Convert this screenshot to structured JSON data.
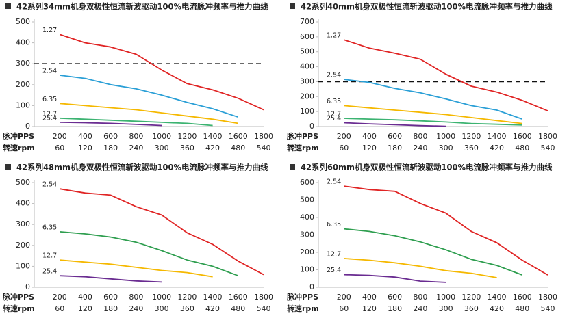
{
  "chart_data": [
    {
      "type": "line",
      "title": "42系列34mm机身双极性恒流斩波驱动100%电流脉冲频率与推力曲线",
      "x_row_label": "脉冲PPS",
      "rpm_row_label": "转速rpm",
      "xlim": [
        0,
        1800
      ],
      "xticks": [
        200,
        400,
        600,
        800,
        1000,
        1200,
        1400,
        1600,
        1800
      ],
      "rpm_ticks": [
        60,
        120,
        180,
        240,
        300,
        360,
        420,
        480,
        540
      ],
      "ylim": [
        0,
        500
      ],
      "yticks": [
        0,
        100,
        200,
        300,
        400,
        500
      ],
      "grid": false,
      "ref_line": 300,
      "series": [
        {
          "name": "1.27",
          "color": "#e02424",
          "x": [
            200,
            400,
            600,
            800,
            1000,
            1200,
            1400,
            1600,
            1800
          ],
          "values": [
            440,
            400,
            380,
            345,
            270,
            205,
            175,
            135,
            80
          ]
        },
        {
          "name": "2.54",
          "color": "#2a9fd6",
          "x": [
            200,
            400,
            600,
            800,
            1000,
            1200,
            1400,
            1600
          ],
          "values": [
            245,
            230,
            200,
            180,
            150,
            115,
            85,
            45
          ]
        },
        {
          "name": "6.35",
          "color": "#f5b800",
          "x": [
            200,
            400,
            600,
            800,
            1000,
            1200,
            1400,
            1600
          ],
          "values": [
            110,
            100,
            90,
            80,
            65,
            50,
            35,
            15
          ]
        },
        {
          "name": "12.7",
          "color": "#3cb371",
          "x": [
            200,
            400,
            600,
            800,
            1000,
            1200,
            1400
          ],
          "values": [
            40,
            35,
            30,
            25,
            20,
            15,
            5
          ]
        },
        {
          "name": "25.4",
          "color": "#6a2c91",
          "x": [
            200,
            400,
            600,
            800,
            1000
          ],
          "values": [
            20,
            18,
            15,
            10,
            5
          ]
        }
      ]
    },
    {
      "type": "line",
      "title": "42系列40mm机身双极性恒流斩波驱动100%电流脉冲频率与推力曲线",
      "x_row_label": "脉冲PPS",
      "rpm_row_label": "转速rpm",
      "xlim": [
        0,
        1800
      ],
      "xticks": [
        200,
        400,
        600,
        800,
        1000,
        1200,
        1400,
        1600,
        1800
      ],
      "rpm_ticks": [
        60,
        120,
        180,
        240,
        300,
        360,
        420,
        480,
        540
      ],
      "ylim": [
        0,
        700
      ],
      "yticks": [
        0,
        100,
        200,
        300,
        400,
        500,
        600,
        700
      ],
      "grid": false,
      "ref_line": 300,
      "series": [
        {
          "name": "1.27",
          "color": "#e02424",
          "x": [
            200,
            400,
            600,
            800,
            1000,
            1200,
            1400,
            1600,
            1800
          ],
          "values": [
            580,
            525,
            490,
            450,
            350,
            270,
            230,
            175,
            105
          ]
        },
        {
          "name": "2.54",
          "color": "#2a9fd6",
          "x": [
            200,
            400,
            600,
            800,
            1000,
            1200,
            1400,
            1600
          ],
          "values": [
            315,
            295,
            255,
            225,
            185,
            140,
            110,
            50
          ]
        },
        {
          "name": "6.35",
          "color": "#f5b800",
          "x": [
            200,
            400,
            600,
            800,
            1000,
            1200,
            1400,
            1600
          ],
          "values": [
            140,
            125,
            110,
            95,
            80,
            60,
            40,
            20
          ]
        },
        {
          "name": "12.7",
          "color": "#3cb371",
          "x": [
            200,
            400,
            600,
            800,
            1000,
            1200,
            1400,
            1600
          ],
          "values": [
            55,
            50,
            45,
            38,
            30,
            20,
            15,
            10
          ]
        },
        {
          "name": "25.4",
          "color": "#6a2c91",
          "x": [
            200,
            400,
            600,
            800,
            1000
          ],
          "values": [
            25,
            18,
            12,
            6,
            2
          ]
        }
      ]
    },
    {
      "type": "line",
      "title": "42系列48mm机身双极性恒流斩波驱动100%电流脉冲频率与推力曲线",
      "x_row_label": "脉冲PPS",
      "rpm_row_label": "转速rpm",
      "xlim": [
        0,
        1800
      ],
      "xticks": [
        200,
        400,
        600,
        800,
        1000,
        1200,
        1400,
        1600,
        1800
      ],
      "rpm_ticks": [
        60,
        120,
        180,
        240,
        300,
        360,
        420,
        480,
        540
      ],
      "ylim": [
        0,
        500
      ],
      "yticks": [
        0,
        100,
        200,
        300,
        400,
        500
      ],
      "grid": false,
      "series": [
        {
          "name": "2.54",
          "color": "#e02424",
          "x": [
            200,
            400,
            600,
            800,
            1000,
            1200,
            1400,
            1600,
            1800
          ],
          "values": [
            470,
            450,
            440,
            385,
            345,
            260,
            205,
            125,
            60
          ]
        },
        {
          "name": "6.35",
          "color": "#2e9e4f",
          "x": [
            200,
            400,
            600,
            800,
            1000,
            1200,
            1400,
            1600
          ],
          "values": [
            265,
            255,
            240,
            215,
            175,
            130,
            100,
            55
          ]
        },
        {
          "name": "12.7",
          "color": "#f5b800",
          "x": [
            200,
            400,
            600,
            800,
            1000,
            1200,
            1400
          ],
          "values": [
            130,
            120,
            110,
            95,
            80,
            70,
            50
          ]
        },
        {
          "name": "25.4",
          "color": "#6a2c91",
          "x": [
            200,
            400,
            600,
            800,
            1000
          ],
          "values": [
            55,
            50,
            40,
            30,
            25
          ]
        }
      ]
    },
    {
      "type": "line",
      "title": "42系列60mm机身双极性恒流斩波驱动100%电流脉冲频率与推力曲线",
      "x_row_label": "脉冲PPS",
      "rpm_row_label": "转速rpm",
      "xlim": [
        0,
        1800
      ],
      "xticks": [
        200,
        400,
        600,
        800,
        1000,
        1200,
        1400,
        1600,
        1800
      ],
      "rpm_ticks": [
        60,
        120,
        180,
        240,
        300,
        360,
        420,
        480,
        540
      ],
      "ylim": [
        0,
        600
      ],
      "yticks": [
        0,
        100,
        200,
        300,
        400,
        500,
        600
      ],
      "grid": false,
      "series": [
        {
          "name": "2.54",
          "color": "#e02424",
          "x": [
            200,
            400,
            600,
            800,
            1000,
            1200,
            1400,
            1600,
            1800
          ],
          "values": [
            580,
            560,
            550,
            480,
            425,
            320,
            255,
            155,
            70
          ]
        },
        {
          "name": "6.35",
          "color": "#2e9e4f",
          "x": [
            200,
            400,
            600,
            800,
            1000,
            1200,
            1400,
            1600
          ],
          "values": [
            335,
            320,
            295,
            260,
            215,
            160,
            125,
            70
          ]
        },
        {
          "name": "12.7",
          "color": "#f5b800",
          "x": [
            200,
            400,
            600,
            800,
            1000,
            1200,
            1400
          ],
          "values": [
            165,
            155,
            140,
            120,
            95,
            80,
            55
          ]
        },
        {
          "name": "25.4",
          "color": "#6a2c91",
          "x": [
            200,
            400,
            600,
            800,
            1000
          ],
          "values": [
            72,
            68,
            58,
            35,
            28
          ]
        }
      ]
    }
  ]
}
